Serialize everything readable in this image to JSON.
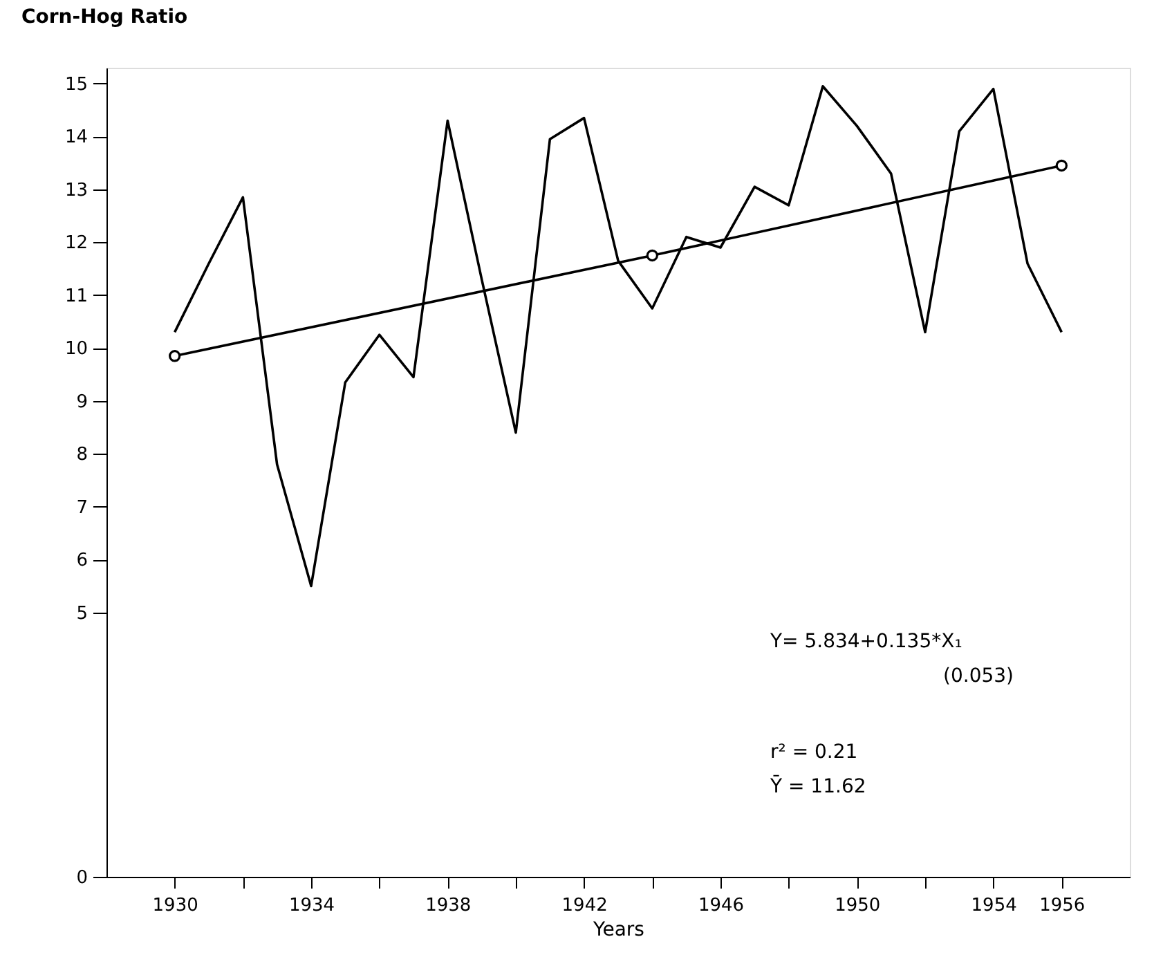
{
  "chart_data": {
    "type": "line",
    "ylabel": "Corn-Hog Ratio",
    "xlabel": "Years",
    "x": [
      1930,
      1931,
      1932,
      1933,
      1934,
      1935,
      1936,
      1937,
      1938,
      1939,
      1940,
      1941,
      1942,
      1943,
      1944,
      1945,
      1946,
      1947,
      1948,
      1949,
      1950,
      1951,
      1952,
      1953,
      1954,
      1955,
      1956
    ],
    "series": [
      {
        "color": "#000000",
        "marker": "none",
        "values": [
          10.3,
          11.6,
          12.85,
          7.8,
          5.5,
          9.35,
          10.25,
          9.45,
          14.3,
          11.3,
          8.4,
          13.95,
          14.35,
          11.65,
          10.75,
          12.1,
          11.9,
          13.05,
          12.7,
          14.95,
          14.2,
          13.3,
          10.3,
          14.1,
          14.9,
          11.6,
          10.3
        ]
      },
      {
        "type": "line",
        "color": "#000000",
        "marker": "circle",
        "x": [
          1930,
          1944,
          1956
        ],
        "values": [
          9.85,
          11.75,
          13.45
        ]
      }
    ],
    "xlim": [
      1928,
      1958
    ],
    "xticks": [
      1930,
      {
        "value": 1932,
        "label": null
      },
      1934,
      {
        "value": 1936,
        "label": null
      },
      1938,
      {
        "value": 1940,
        "label": null
      },
      1942,
      {
        "value": 1944,
        "label": null
      },
      1946,
      {
        "value": 1948,
        "label": null
      },
      1950,
      {
        "value": 1952,
        "label": null
      },
      1954,
      1956
    ],
    "ylim": [
      0,
      15.3
    ],
    "yticks": [
      0,
      5,
      6,
      7,
      8,
      9,
      10,
      11,
      12,
      13,
      14,
      15
    ],
    "grid": false,
    "annotations": [
      "Y= 5.834+0.135*X₁",
      "(0.053)",
      "r² =  0.21",
      "Ȳ =  11.62"
    ]
  }
}
